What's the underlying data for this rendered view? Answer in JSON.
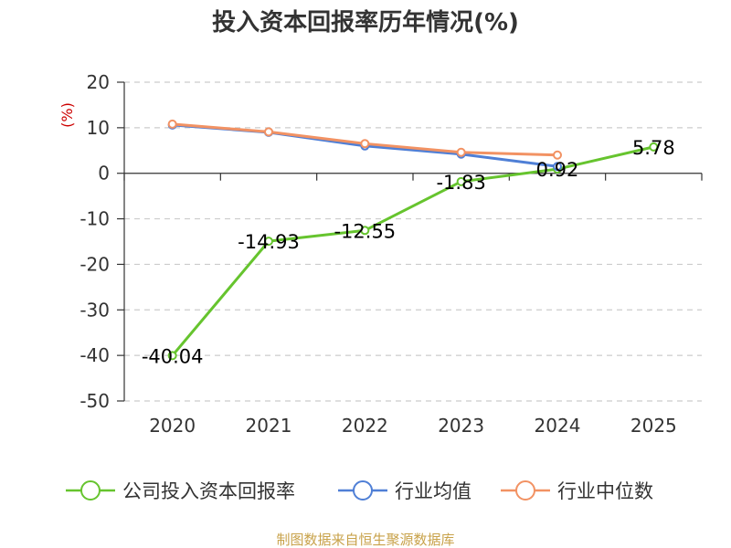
{
  "chart_data": {
    "type": "line",
    "title": "投入资本回报率历年情况(%)",
    "ylabel": "(%)",
    "categories": [
      "2020",
      "2021",
      "2022",
      "2023",
      "2024",
      "2025"
    ],
    "ylim": [
      -50,
      20
    ],
    "yticks": [
      20,
      10,
      0,
      -10,
      -20,
      -30,
      -40,
      -50
    ],
    "grid": true,
    "legend_position": "bottom",
    "series": [
      {
        "name": "公司投入资本回报率",
        "color": "#66c42e",
        "values": [
          -40.04,
          -14.93,
          -12.55,
          -1.83,
          0.92,
          5.78
        ],
        "labels": [
          "-40.04",
          "-14.93",
          "-12.55",
          "-1.83",
          "0.92",
          "5.78"
        ]
      },
      {
        "name": "行业均值",
        "color": "#4f7fd6",
        "values": [
          10.6,
          9.0,
          6.0,
          4.2,
          1.5,
          null
        ]
      },
      {
        "name": "行业中位数",
        "color": "#f29263",
        "values": [
          10.8,
          9.1,
          6.5,
          4.6,
          4.0,
          null
        ]
      }
    ]
  },
  "source": "制图数据来自恒生聚源数据库",
  "colors": {
    "ylabel": "#cc0000",
    "source": "#c8a24a",
    "axis": "#333333",
    "grid": "#cccccc"
  }
}
